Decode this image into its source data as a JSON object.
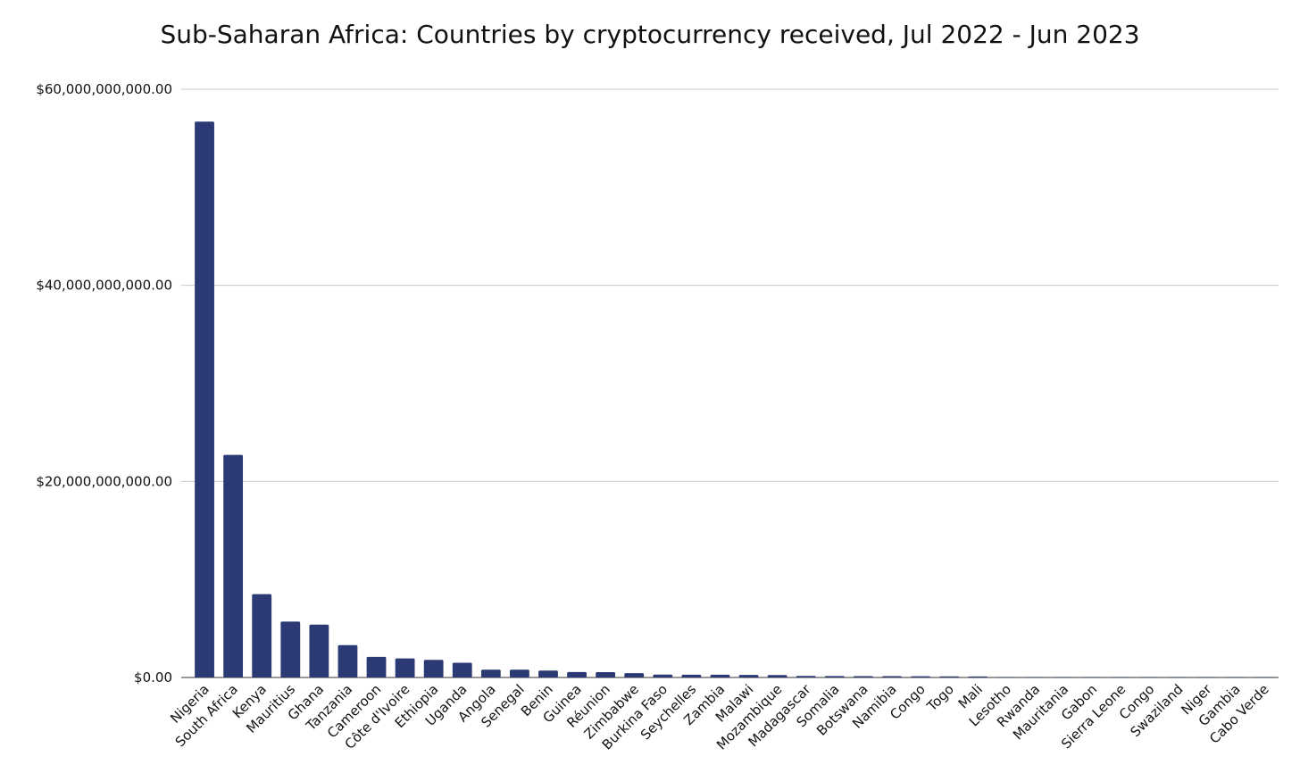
{
  "chart_data": {
    "type": "bar",
    "title": "Sub-Saharan Africa: Countries by cryptocurrency received, Jul 2022 - Jun 2023",
    "xlabel": "",
    "ylabel": "",
    "ylim": [
      0,
      60000000000
    ],
    "grid": true,
    "legend": "none",
    "bar_color": "#2b3a75",
    "y_ticks": [
      {
        "value": 0,
        "label": "$0.00"
      },
      {
        "value": 20000000000,
        "label": "$20,000,000,000.00"
      },
      {
        "value": 40000000000,
        "label": "$40,000,000,000.00"
      },
      {
        "value": 60000000000,
        "label": "$60,000,000,000.00"
      }
    ],
    "categories": [
      "Nigeria",
      "South Africa",
      "Kenya",
      "Mauritius",
      "Ghana",
      "Tanzania",
      "Cameroon",
      "Côte d'Ivoire",
      "Ethiopia",
      "Uganda",
      "Angola",
      "Senegal",
      "Benin",
      "Guinea",
      "Réunion",
      "Zimbabwe",
      "Burkina Faso",
      "Seychelles",
      "Zambia",
      "Malawi",
      "Mozambique",
      "Madagascar",
      "Somalia",
      "Botswana",
      "Namibia",
      "Congo",
      "Togo",
      "Mali",
      "Lesotho",
      "Rwanda",
      "Mauritania",
      "Gabon",
      "Sierra Leone",
      "Congo",
      "Swaziland",
      "Niger",
      "Gambia",
      "Cabo Verde"
    ],
    "values": [
      56700000000,
      22700000000,
      8500000000,
      5700000000,
      5400000000,
      3300000000,
      2100000000,
      1950000000,
      1800000000,
      1500000000,
      800000000,
      800000000,
      700000000,
      560000000,
      550000000,
      440000000,
      300000000,
      290000000,
      280000000,
      260000000,
      250000000,
      160000000,
      150000000,
      140000000,
      140000000,
      120000000,
      110000000,
      100000000,
      5000000,
      5000000,
      5000000,
      5000000,
      5000000,
      5000000,
      5000000,
      5000000,
      5000000,
      5000000
    ]
  }
}
